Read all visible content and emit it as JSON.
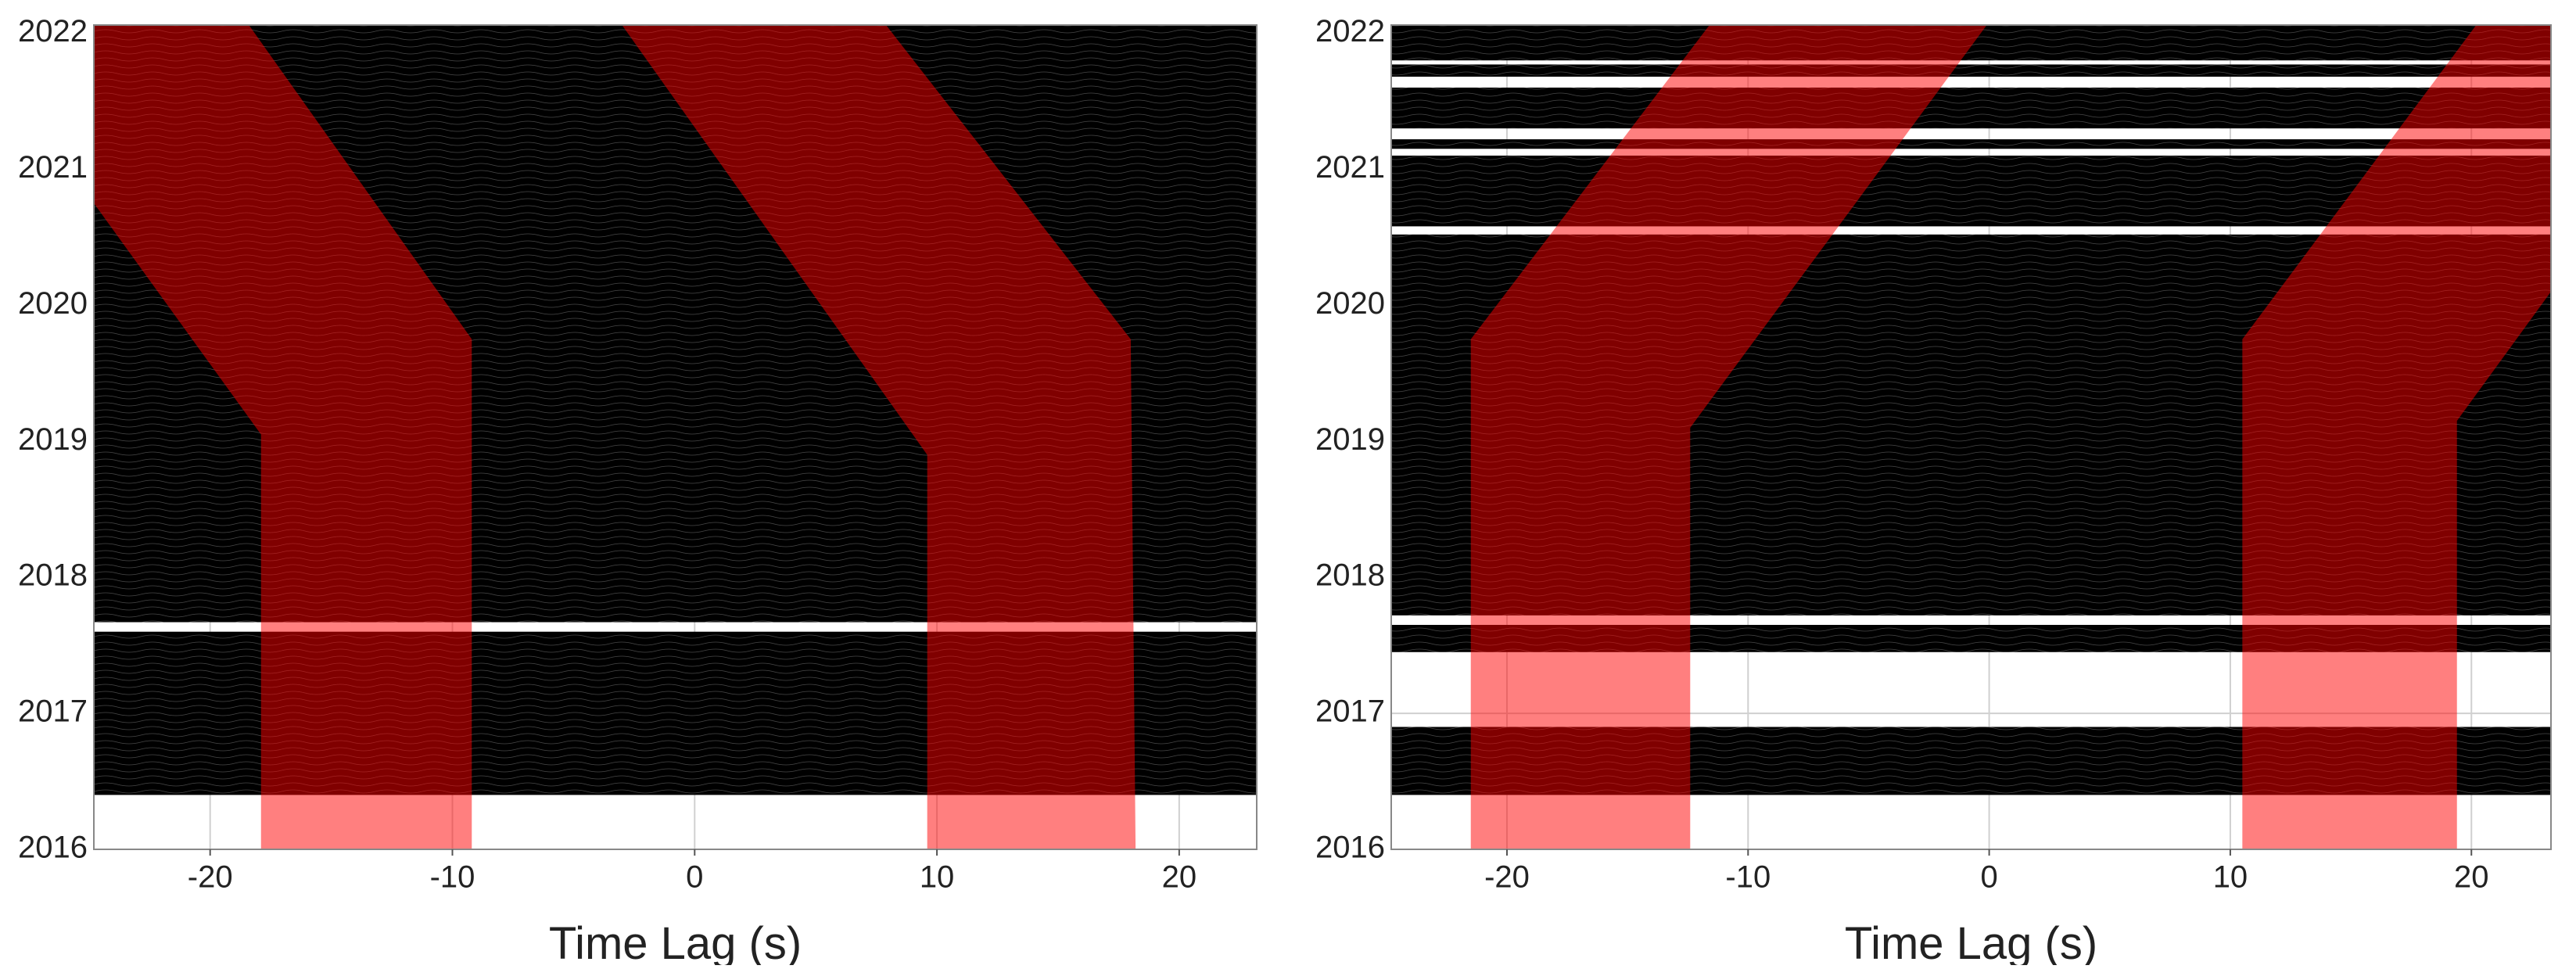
{
  "chart_data": [
    {
      "type": "waveform",
      "xlabel": "Time Lag (s)",
      "xlim": [
        -24.8,
        23.2
      ],
      "ylim": [
        2016,
        2022.06
      ],
      "xticks": [
        -20,
        -10,
        0,
        10,
        20
      ],
      "yticks": [
        2016,
        2017,
        2018,
        2019,
        2020,
        2021,
        2022
      ],
      "grid": true,
      "traces": {
        "color": "#000000",
        "spans": [
          [
            2016.4,
            2017.6
          ],
          [
            2017.67,
            2022.06
          ]
        ]
      },
      "windows": {
        "color": "#ff0000",
        "opacity": 0.5,
        "polygons": [
          {
            "x": [
              -24.8,
              -18.4,
              -9.2,
              -9.2,
              -17.9,
              -17.9,
              -24.8
            ],
            "y": [
              2022.06,
              2022.06,
              2019.75,
              2016,
              2016,
              2019.05,
              2020.75
            ]
          },
          {
            "x": [
              -3.0,
              7.9,
              18.0,
              18.2,
              9.6,
              9.6
            ],
            "y": [
              2022.06,
              2022.06,
              2019.75,
              2016,
              2016,
              2018.9
            ]
          }
        ]
      }
    },
    {
      "type": "waveform",
      "xlabel": "Time Lag (s)",
      "xlim": [
        -24.8,
        23.3
      ],
      "ylim": [
        2016,
        2022.06
      ],
      "xticks": [
        -20,
        -10,
        0,
        10,
        20
      ],
      "yticks": [
        2016,
        2017,
        2018,
        2019,
        2020,
        2021,
        2022
      ],
      "grid": true,
      "traces": {
        "color": "#000000",
        "spans": [
          [
            2016.4,
            2016.9
          ],
          [
            2017.45,
            2017.65
          ],
          [
            2017.72,
            2020.52
          ],
          [
            2020.58,
            2021.1
          ],
          [
            2021.15,
            2021.22
          ],
          [
            2021.3,
            2021.6
          ],
          [
            2021.68,
            2021.77
          ],
          [
            2021.8,
            2022.06
          ]
        ]
      },
      "windows": {
        "color": "#ff0000",
        "opacity": 0.5,
        "polygons": [
          {
            "x": [
              -21.5,
              -11.6,
              -0.1,
              -12.4,
              -12.4,
              -21.5
            ],
            "y": [
              2019.75,
              2022.06,
              2022.06,
              2019.1,
              2016,
              2016
            ]
          },
          {
            "x": [
              10.5,
              19.4,
              19.4,
              23.3,
              23.3,
              20.2,
              10.5
            ],
            "y": [
              2016,
              2016,
              2019.15,
              2020.1,
              2022.06,
              2022.06,
              2019.75
            ]
          }
        ]
      }
    }
  ]
}
